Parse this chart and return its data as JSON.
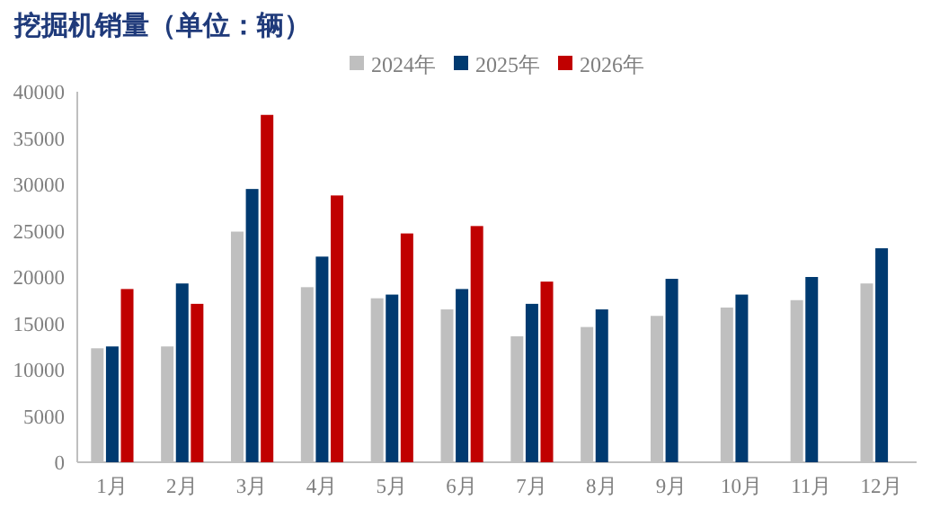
{
  "chart_data": {
    "type": "bar",
    "title": "挖掘机销量（单位：辆）",
    "categories": [
      "1月",
      "2月",
      "3月",
      "4月",
      "5月",
      "6月",
      "7月",
      "8月",
      "9月",
      "10月",
      "11月",
      "12月"
    ],
    "series": [
      {
        "name": "2024年",
        "color": "#bfbfbf",
        "values": [
          12300,
          12500,
          24900,
          18900,
          17700,
          16500,
          13600,
          14600,
          15800,
          16700,
          17500,
          19300
        ]
      },
      {
        "name": "2025年",
        "color": "#003a70",
        "values": [
          12500,
          19300,
          29500,
          22200,
          18100,
          18700,
          17100,
          16500,
          19800,
          18100,
          20000,
          23100
        ]
      },
      {
        "name": "2026年",
        "color": "#c00000",
        "values": [
          18700,
          17100,
          37500,
          28800,
          24700,
          25500,
          19500,
          null,
          null,
          null,
          null,
          null
        ]
      }
    ],
    "ylim": [
      0,
      40000
    ],
    "yticks": [
      0,
      5000,
      10000,
      15000,
      20000,
      25000,
      30000,
      35000,
      40000
    ],
    "legend": "top",
    "grid": false
  }
}
